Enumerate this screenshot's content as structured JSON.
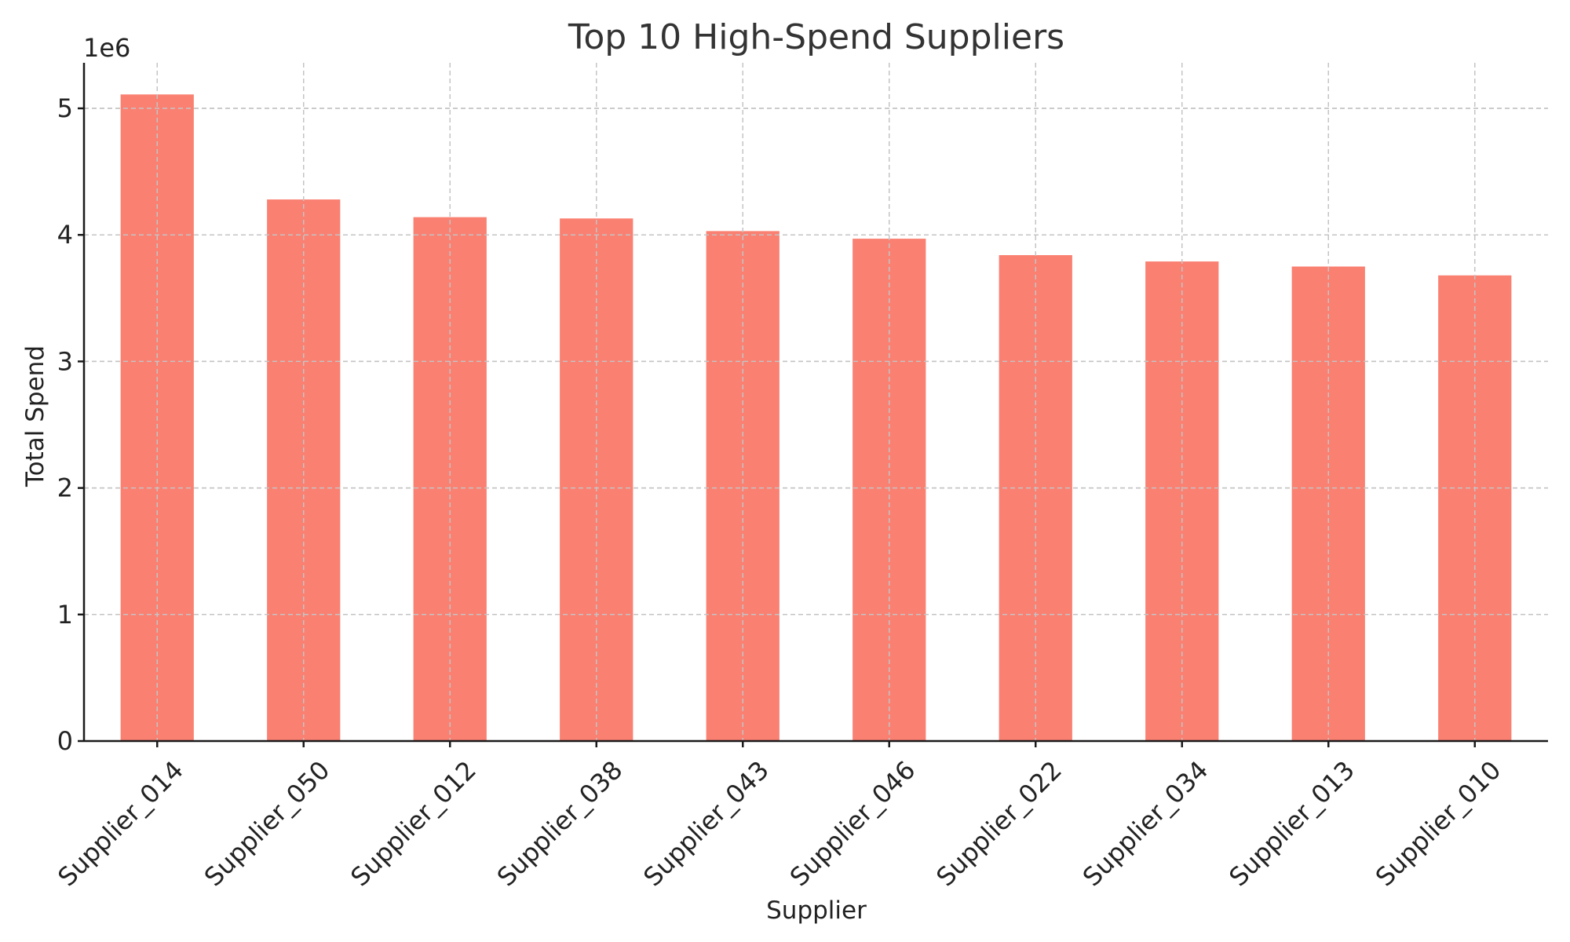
{
  "chart_data": {
    "type": "bar",
    "title": "Top 10 High-Spend Suppliers",
    "xlabel": "Supplier",
    "ylabel": "Total Spend",
    "y_scale_label": "1e6",
    "categories": [
      "Supplier_014",
      "Supplier_050",
      "Supplier_012",
      "Supplier_038",
      "Supplier_043",
      "Supplier_046",
      "Supplier_022",
      "Supplier_034",
      "Supplier_013",
      "Supplier_010"
    ],
    "values": [
      5110000,
      4280000,
      4140000,
      4130000,
      4030000,
      3970000,
      3840000,
      3790000,
      3750000,
      3680000
    ],
    "yticks": [
      0,
      1,
      2,
      3,
      4,
      5
    ],
    "ylim": [
      0,
      5360000
    ],
    "grid": true,
    "bar_color": "#fa8072"
  }
}
